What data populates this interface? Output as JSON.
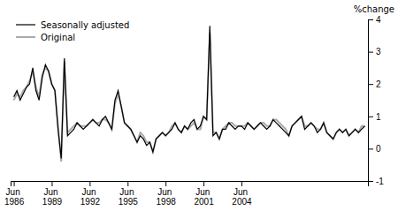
{
  "chart_data": {
    "type": "line",
    "y_label": "%change",
    "categories": [
      "Jun 1986",
      null,
      null,
      null,
      null,
      null,
      null,
      null,
      null,
      null,
      null,
      null,
      "Jun 1989",
      null,
      null,
      null,
      null,
      null,
      null,
      null,
      null,
      null,
      null,
      null,
      "Jun 1992",
      null,
      null,
      null,
      null,
      null,
      null,
      null,
      null,
      null,
      null,
      null,
      "Jun 1995",
      null,
      null,
      null,
      null,
      null,
      null,
      null,
      null,
      null,
      null,
      null,
      "Jun 1998",
      null,
      null,
      null,
      null,
      null,
      null,
      null,
      null,
      null,
      null,
      null,
      "Jun 2001",
      null,
      null,
      null,
      null,
      null,
      null,
      null,
      null,
      null,
      null,
      null,
      "Jun 2004",
      null,
      null,
      null,
      null,
      null,
      null,
      null,
      null,
      null,
      null,
      null,
      null,
      null,
      null,
      null,
      null,
      null,
      null,
      null,
      null,
      null,
      null,
      null,
      null,
      null,
      null,
      null,
      null,
      null,
      null,
      null,
      null,
      null,
      null,
      null,
      null,
      null,
      null,
      null
    ],
    "series": [
      {
        "name": "Seasonally adjusted",
        "color": "#000000",
        "values": [
          1.6,
          1.8,
          1.5,
          1.7,
          1.9,
          2.0,
          2.5,
          1.8,
          1.5,
          2.2,
          2.6,
          2.4,
          2.0,
          1.8,
          0.6,
          -0.3,
          2.8,
          0.4,
          0.5,
          0.6,
          0.8,
          0.7,
          0.6,
          0.7,
          0.8,
          0.9,
          0.8,
          0.7,
          0.9,
          1.0,
          0.8,
          0.6,
          1.5,
          1.8,
          1.3,
          0.8,
          0.7,
          0.6,
          0.4,
          0.2,
          0.4,
          0.3,
          0.1,
          0.2,
          -0.1,
          0.3,
          0.4,
          0.5,
          0.4,
          0.5,
          0.6,
          0.8,
          0.6,
          0.5,
          0.7,
          0.6,
          0.8,
          0.9,
          0.6,
          0.7,
          1.0,
          0.9,
          3.8,
          0.4,
          0.5,
          0.3,
          0.6,
          0.6,
          0.8,
          0.7,
          0.6,
          0.7,
          0.7,
          0.6,
          0.8,
          0.7,
          0.6,
          0.7,
          0.8,
          0.7,
          0.6,
          0.7,
          0.9,
          0.8,
          0.7,
          0.6,
          0.5,
          0.4,
          0.7,
          0.8,
          0.9,
          1.0,
          0.6,
          0.7,
          0.8,
          0.7,
          0.5,
          0.6,
          0.8,
          0.5,
          0.4,
          0.3,
          0.5,
          0.6,
          0.5,
          0.6,
          0.4,
          0.5,
          0.6,
          0.5,
          0.6,
          0.7
        ]
      },
      {
        "name": "Original",
        "color": "#aaaaaa",
        "values": [
          1.5,
          1.7,
          1.6,
          1.8,
          1.9,
          2.1,
          2.4,
          1.9,
          1.6,
          2.3,
          2.5,
          2.4,
          2.0,
          1.8,
          0.7,
          -0.4,
          2.7,
          0.5,
          0.6,
          0.7,
          0.8,
          0.7,
          0.7,
          0.7,
          0.8,
          0.9,
          0.8,
          0.8,
          0.9,
          0.9,
          0.8,
          0.6,
          1.4,
          1.7,
          1.3,
          0.8,
          0.7,
          0.6,
          0.4,
          0.2,
          0.5,
          0.4,
          0.2,
          0.2,
          -0.1,
          0.3,
          0.4,
          0.5,
          0.4,
          0.5,
          0.7,
          0.8,
          0.6,
          0.5,
          0.7,
          0.6,
          0.7,
          0.8,
          0.6,
          0.6,
          1.0,
          0.9,
          3.6,
          0.5,
          0.5,
          0.3,
          0.6,
          0.7,
          0.8,
          0.8,
          0.7,
          0.7,
          0.7,
          0.7,
          0.8,
          0.7,
          0.6,
          0.7,
          0.8,
          0.8,
          0.7,
          0.7,
          0.9,
          0.9,
          0.8,
          0.7,
          0.6,
          0.4,
          0.7,
          0.8,
          0.9,
          1.0,
          0.7,
          0.7,
          0.8,
          0.7,
          0.6,
          0.6,
          0.8,
          0.5,
          0.4,
          0.3,
          0.5,
          0.6,
          0.5,
          0.6,
          0.4,
          0.5,
          0.6,
          0.5,
          0.7,
          0.7
        ]
      }
    ],
    "ylim": [
      -1,
      4
    ],
    "yticks": [
      -1,
      0,
      1,
      2,
      3,
      4
    ],
    "legend": "upper left"
  }
}
